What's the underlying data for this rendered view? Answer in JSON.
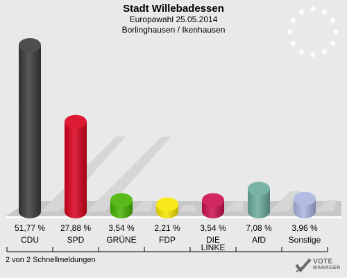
{
  "header": {
    "title": "Stadt Willebadessen",
    "subtitle": "Europawahl 25.05.2014",
    "region": "Borlinghausen / Ikenhausen"
  },
  "footer": {
    "text": "2 von 2 Schnellmeldungen"
  },
  "logo": {
    "text": "VOTE",
    "subtext": "MANAGER"
  },
  "chart_data": {
    "type": "bar",
    "categories": [
      "CDU",
      "SPD",
      "GRÜNE",
      "FDP",
      "DIE LINKE",
      "AfD",
      "Sonstige"
    ],
    "values": [
      51.77,
      27.88,
      3.54,
      2.21,
      3.54,
      7.08,
      3.96
    ],
    "value_labels": [
      "51,77 %",
      "27,88 %",
      "3,54 %",
      "2,21 %",
      "3,54 %",
      "7,08 %",
      "3,96 %"
    ],
    "colors": [
      "#3a3a3a",
      "#d8001c",
      "#46b400",
      "#f7e600",
      "#cc1050",
      "#6aab9a",
      "#a9b4e0"
    ],
    "unit": "%"
  }
}
